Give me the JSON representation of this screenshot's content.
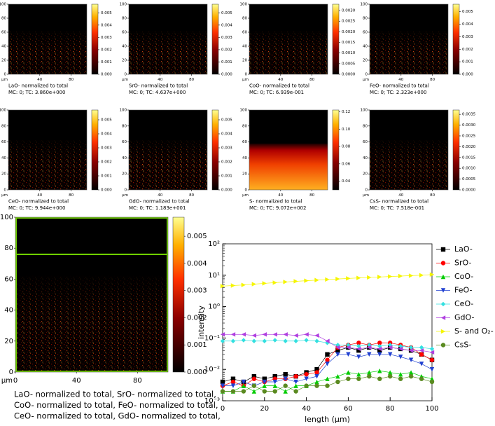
{
  "chart_data": [
    {
      "type": "heatmap",
      "colormap": "hot",
      "x_unit": "µm",
      "xlim": [
        0,
        100
      ],
      "xticks": [
        40,
        80
      ],
      "ylim": [
        0,
        100
      ],
      "yticks": [
        0,
        20,
        40,
        60,
        80,
        100
      ],
      "zlim": [
        0,
        0.0057
      ],
      "zticks": [
        {
          "value": 0,
          "label": "0.000"
        },
        {
          "value": 0.001,
          "label": "0.001"
        },
        {
          "value": 0.002,
          "label": "0.002"
        },
        {
          "value": 0.003,
          "label": "0.003"
        },
        {
          "value": 0.004,
          "label": "0.004"
        },
        {
          "value": 0.005,
          "label": "0.005"
        }
      ],
      "caption": [
        "LaO- normalized to total",
        "MC:     0; TC: 3.860e+000"
      ]
    },
    {
      "type": "heatmap",
      "colormap": "hot",
      "x_unit": "µm",
      "xlim": [
        0,
        100
      ],
      "xticks": [
        40,
        80
      ],
      "ylim": [
        0,
        100
      ],
      "yticks": [
        0,
        20,
        40,
        60,
        80,
        100
      ],
      "zlim": [
        0,
        0.0057
      ],
      "zticks": [
        {
          "value": 0,
          "label": "0.000"
        },
        {
          "value": 0.001,
          "label": "0.001"
        },
        {
          "value": 0.002,
          "label": "0.002"
        },
        {
          "value": 0.003,
          "label": "0.003"
        },
        {
          "value": 0.004,
          "label": "0.004"
        },
        {
          "value": 0.005,
          "label": "0.005"
        }
      ],
      "caption": [
        "SrO- normalized to total",
        "MC:     0; TC: 4.637e+000"
      ]
    },
    {
      "type": "heatmap",
      "colormap": "hot",
      "x_unit": "µm",
      "xlim": [
        0,
        100
      ],
      "xticks": [
        40,
        80
      ],
      "ylim": [
        0,
        100
      ],
      "yticks": [
        0,
        20,
        40,
        60,
        80,
        100
      ],
      "zlim": [
        0,
        0.0033
      ],
      "zticks": [
        {
          "value": 0,
          "label": "0.0000"
        },
        {
          "value": 0.0005,
          "label": "0.0005"
        },
        {
          "value": 0.001,
          "label": "0.0010"
        },
        {
          "value": 0.0015,
          "label": "0.0015"
        },
        {
          "value": 0.002,
          "label": "0.0020"
        },
        {
          "value": 0.0025,
          "label": "0.0025"
        },
        {
          "value": 0.003,
          "label": "0.0030"
        }
      ],
      "caption": [
        "CoO- normalized to total",
        "MC:     0; TC: 6.939e-001"
      ]
    },
    {
      "type": "heatmap",
      "colormap": "hot",
      "x_unit": "µm",
      "xlim": [
        0,
        100
      ],
      "xticks": [
        40,
        80
      ],
      "ylim": [
        0,
        100
      ],
      "yticks": [
        0,
        20,
        40,
        60,
        80,
        100
      ],
      "zlim": [
        0,
        0.0056
      ],
      "zticks": [
        {
          "value": 0,
          "label": "0.000"
        },
        {
          "value": 0.001,
          "label": "0.001"
        },
        {
          "value": 0.002,
          "label": "0.002"
        },
        {
          "value": 0.003,
          "label": "0.003"
        },
        {
          "value": 0.004,
          "label": "0.004"
        },
        {
          "value": 0.005,
          "label": "0.005"
        }
      ],
      "caption": [
        "FeO- normalized to total",
        "MC:     0; TC: 2.323e+000"
      ]
    },
    {
      "type": "heatmap",
      "colormap": "hot",
      "x_unit": "µm",
      "xlim": [
        0,
        100
      ],
      "xticks": [
        40,
        80
      ],
      "ylim": [
        0,
        100
      ],
      "yticks": [
        0,
        20,
        40,
        60,
        80,
        100
      ],
      "zlim": [
        0,
        0.0057
      ],
      "zticks": [
        {
          "value": 0,
          "label": "0.000"
        },
        {
          "value": 0.001,
          "label": "0.001"
        },
        {
          "value": 0.002,
          "label": "0.002"
        },
        {
          "value": 0.003,
          "label": "0.003"
        },
        {
          "value": 0.004,
          "label": "0.004"
        },
        {
          "value": 0.005,
          "label": "0.005"
        }
      ],
      "caption": [
        "CeO- normalized to total",
        "MC:     0; TC: 9.944e+000"
      ]
    },
    {
      "type": "heatmap",
      "colormap": "hot",
      "x_unit": "µm",
      "xlim": [
        0,
        100
      ],
      "xticks": [
        40,
        80
      ],
      "ylim": [
        0,
        100
      ],
      "yticks": [
        0,
        20,
        40,
        60,
        80,
        100
      ],
      "zlim": [
        0,
        0.0057
      ],
      "zticks": [
        {
          "value": 0,
          "label": "0.000"
        },
        {
          "value": 0.001,
          "label": "0.001"
        },
        {
          "value": 0.002,
          "label": "0.002"
        },
        {
          "value": 0.003,
          "label": "0.003"
        },
        {
          "value": 0.004,
          "label": "0.004"
        },
        {
          "value": 0.005,
          "label": "0.005"
        }
      ],
      "caption": [
        "GdO- normalized to total",
        "MC:     0; TC: 1.183e+001"
      ]
    },
    {
      "type": "heatmap",
      "colormap": "hot",
      "x_unit": "µm",
      "xlim": [
        0,
        100
      ],
      "xticks": [
        40,
        80
      ],
      "ylim": [
        0,
        100
      ],
      "yticks": [
        0,
        20,
        40,
        60,
        80,
        100
      ],
      "zlim": [
        0.03,
        0.122
      ],
      "zticks": [
        {
          "value": 0.04,
          "label": "0.04"
        },
        {
          "value": 0.06,
          "label": "0.06"
        },
        {
          "value": 0.08,
          "label": "0.08"
        },
        {
          "value": 0.1,
          "label": "0.10"
        },
        {
          "value": 0.12,
          "label": "0.12"
        }
      ],
      "caption": [
        "S- normalized to total",
        "MC:     0; TC: 9.072e+002"
      ]
    },
    {
      "type": "heatmap",
      "colormap": "hot",
      "x_unit": "µm",
      "xlim": [
        0,
        100
      ],
      "xticks": [
        40,
        80
      ],
      "ylim": [
        0,
        100
      ],
      "yticks": [
        0,
        20,
        40,
        60,
        80,
        100
      ],
      "zlim": [
        0,
        0.0037
      ],
      "zticks": [
        {
          "value": 0,
          "label": "0.0000"
        },
        {
          "value": 0.0005,
          "label": "0.0005"
        },
        {
          "value": 0.001,
          "label": "0.0010"
        },
        {
          "value": 0.0015,
          "label": "0.0015"
        },
        {
          "value": 0.002,
          "label": "0.0020"
        },
        {
          "value": 0.0025,
          "label": "0.0025"
        },
        {
          "value": 0.003,
          "label": "0.0030"
        },
        {
          "value": 0.0035,
          "label": "0.0035"
        }
      ],
      "caption": [
        "CsS- normalized to total",
        "MC:     0; TC: 7.518e-001"
      ]
    },
    {
      "type": "heatmap",
      "colormap": "hot",
      "x_unit": "µm",
      "xlim": [
        0,
        100
      ],
      "xticks": [
        0,
        40,
        80
      ],
      "ylim": [
        0,
        100
      ],
      "yticks": [
        0,
        20,
        40,
        60,
        80,
        100
      ],
      "zlim": [
        0,
        0.0057
      ],
      "zticks": [
        {
          "value": 0,
          "label": "0.000"
        },
        {
          "value": 0.001,
          "label": "0.001"
        },
        {
          "value": 0.002,
          "label": "0.002"
        },
        {
          "value": 0.003,
          "label": "0.003"
        },
        {
          "value": 0.004,
          "label": "0.004"
        },
        {
          "value": 0.005,
          "label": "0.005"
        }
      ],
      "caption": [
        "LaO- normalized to total, SrO- normalized to total,",
        "CoO- normalized to total, FeO- normalized to total,",
        "CeO- normalized to total, GdO- normalized to total,"
      ]
    },
    {
      "type": "line",
      "log_y": true,
      "x_label": "length (µm)",
      "y_label": "intensity",
      "xlim": [
        0,
        100
      ],
      "xticks": [
        0,
        20,
        40,
        60,
        80,
        100
      ],
      "ylim": [
        0.001,
        100
      ],
      "yticks": [
        {
          "value": 0.001,
          "label": "10⁻³"
        },
        {
          "value": 0.01,
          "label": "10⁻²"
        },
        {
          "value": 0.1,
          "label": "10⁻¹"
        },
        {
          "value": 1,
          "label": "10⁰"
        },
        {
          "value": 10,
          "label": "10¹"
        },
        {
          "value": 100,
          "label": "10²"
        }
      ],
      "x": [
        0,
        5,
        10,
        15,
        20,
        25,
        30,
        35,
        40,
        45,
        50,
        55,
        60,
        65,
        70,
        75,
        80,
        85,
        90,
        95,
        100
      ],
      "series": [
        {
          "name": "LaO-",
          "color": "#000000",
          "marker": "square",
          "values": [
            0.004,
            0.005,
            0.004,
            0.006,
            0.005,
            0.006,
            0.007,
            0.006,
            0.008,
            0.01,
            0.03,
            0.04,
            0.05,
            0.04,
            0.05,
            0.04,
            0.05,
            0.045,
            0.04,
            0.03,
            0.02
          ]
        },
        {
          "name": "SrO-",
          "color": "#ff0000",
          "marker": "circle",
          "values": [
            0.003,
            0.004,
            0.003,
            0.005,
            0.004,
            0.005,
            0.005,
            0.006,
            0.007,
            0.008,
            0.02,
            0.05,
            0.06,
            0.07,
            0.06,
            0.07,
            0.07,
            0.06,
            0.05,
            0.03,
            0.02
          ]
        },
        {
          "name": "CoO-",
          "color": "#00cc00",
          "marker": "triangle-up",
          "values": [
            0.002,
            0.002,
            0.003,
            0.002,
            0.003,
            0.003,
            0.002,
            0.003,
            0.003,
            0.004,
            0.005,
            0.006,
            0.008,
            0.007,
            0.008,
            0.009,
            0.008,
            0.007,
            0.008,
            0.006,
            0.005
          ]
        },
        {
          "name": "FeO-",
          "color": "#1f3fd0",
          "marker": "triangle-down",
          "values": [
            0.003,
            0.003,
            0.004,
            0.003,
            0.004,
            0.004,
            0.005,
            0.004,
            0.005,
            0.006,
            0.015,
            0.03,
            0.03,
            0.025,
            0.03,
            0.03,
            0.03,
            0.025,
            0.02,
            0.015,
            0.01
          ]
        },
        {
          "name": "CeO-",
          "color": "#33e0e0",
          "marker": "diamond",
          "values": [
            0.08,
            0.08,
            0.085,
            0.08,
            0.08,
            0.085,
            0.08,
            0.08,
            0.085,
            0.08,
            0.07,
            0.06,
            0.06,
            0.055,
            0.06,
            0.055,
            0.06,
            0.055,
            0.05,
            0.05,
            0.045
          ]
        },
        {
          "name": "GdO-",
          "color": "#b040e0",
          "marker": "triangle-left",
          "values": [
            0.13,
            0.13,
            0.13,
            0.12,
            0.13,
            0.13,
            0.13,
            0.12,
            0.13,
            0.12,
            0.08,
            0.05,
            0.05,
            0.045,
            0.05,
            0.045,
            0.05,
            0.045,
            0.04,
            0.04,
            0.035
          ]
        },
        {
          "name": "S- and O₂-",
          "color": "#f5f500",
          "marker": "triangle-right",
          "values": [
            4.5,
            4.7,
            4.9,
            5.2,
            5.5,
            5.8,
            6.1,
            6.4,
            6.7,
            7.0,
            7.3,
            7.6,
            7.9,
            8.2,
            8.5,
            8.8,
            9.1,
            9.4,
            9.7,
            10.0,
            10.5
          ]
        },
        {
          "name": "CsS-",
          "color": "#5a8a20",
          "marker": "circle",
          "values": [
            0.002,
            0.002,
            0.002,
            0.003,
            0.002,
            0.002,
            0.003,
            0.002,
            0.003,
            0.003,
            0.003,
            0.004,
            0.005,
            0.005,
            0.006,
            0.005,
            0.006,
            0.005,
            0.006,
            0.005,
            0.004
          ]
        }
      ]
    }
  ]
}
